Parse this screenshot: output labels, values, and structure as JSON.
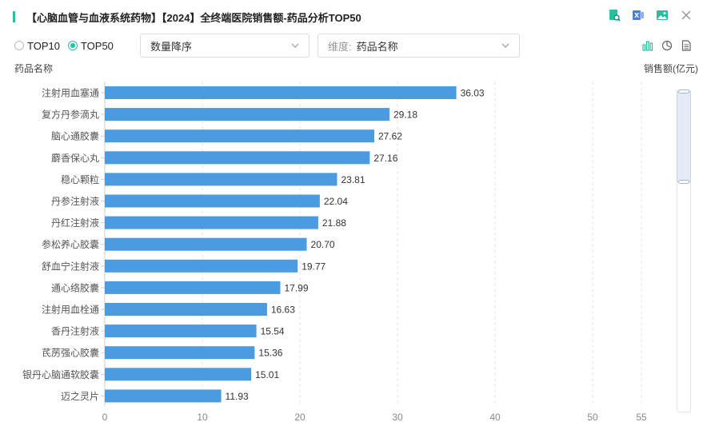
{
  "header": {
    "title": "【心脑血管与血液系统药物】【2024】全终端医院销售额-药品分析TOP50",
    "icons": [
      "search-report-icon",
      "excel-export-icon",
      "image-export-icon",
      "close-icon"
    ]
  },
  "controls": {
    "radio_top10": "TOP10",
    "radio_top50": "TOP50",
    "selected_radio": "TOP50",
    "sort_select": "数量降序",
    "dimension_label": "维度:",
    "dimension_value": "药品名称"
  },
  "view_icons": [
    "bar-chart-icon",
    "pie-chart-icon",
    "document-icon"
  ],
  "colors": {
    "accent": "#2bbf9d",
    "bar": "#4a9be0",
    "grid": "#e6e6e6"
  },
  "chart_data": {
    "type": "bar",
    "orientation": "horizontal",
    "ylabel": "药品名称",
    "xlabel": "销售额(亿元)",
    "xlim": [
      0,
      55
    ],
    "xticks": [
      0,
      10,
      20,
      30,
      40,
      50,
      55
    ],
    "categories": [
      "注射用血塞通",
      "复方丹参滴丸",
      "脑心通胶囊",
      "麝香保心丸",
      "稳心颗粒",
      "丹参注射液",
      "丹红注射液",
      "参松养心胶囊",
      "舒血宁注射液",
      "通心络胶囊",
      "注射用血栓通",
      "香丹注射液",
      "芪苈强心胶囊",
      "银丹心脑通软胶囊",
      "迈之灵片"
    ],
    "values": [
      36.03,
      29.18,
      27.62,
      27.16,
      23.81,
      22.04,
      21.88,
      20.7,
      19.77,
      17.99,
      16.63,
      15.54,
      15.36,
      15.01,
      11.93
    ],
    "value_labels": [
      "36.03",
      "29.18",
      "27.62",
      "27.16",
      "23.81",
      "22.04",
      "21.88",
      "20.70",
      "19.77",
      "17.99",
      "16.63",
      "15.54",
      "15.36",
      "15.01",
      "11.93"
    ],
    "grid": true
  }
}
